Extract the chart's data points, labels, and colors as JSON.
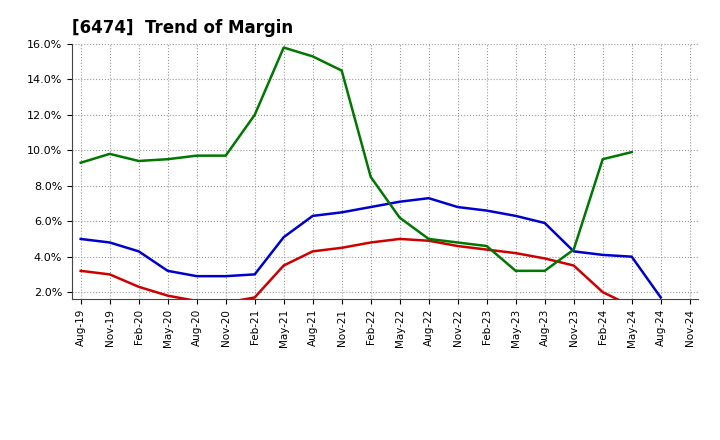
{
  "title": "[6474]  Trend of Margin",
  "x_labels": [
    "Aug-19",
    "Nov-19",
    "Feb-20",
    "May-20",
    "Aug-20",
    "Nov-20",
    "Feb-21",
    "May-21",
    "Aug-21",
    "Nov-21",
    "Feb-22",
    "May-22",
    "Aug-22",
    "Nov-22",
    "Feb-23",
    "May-23",
    "Aug-23",
    "Nov-23",
    "Feb-24",
    "May-24",
    "Aug-24",
    "Nov-24"
  ],
  "ordinary_income": [
    5.0,
    4.8,
    4.3,
    3.2,
    2.9,
    2.9,
    3.0,
    5.1,
    6.3,
    6.5,
    6.8,
    7.1,
    7.3,
    6.8,
    6.6,
    6.3,
    5.9,
    4.3,
    4.1,
    4.0,
    1.7,
    null
  ],
  "net_income": [
    3.2,
    3.0,
    2.3,
    1.8,
    1.5,
    1.4,
    1.7,
    3.5,
    4.3,
    4.5,
    4.8,
    5.0,
    4.9,
    4.6,
    4.4,
    4.2,
    3.9,
    3.5,
    2.0,
    1.2,
    1.4,
    null
  ],
  "operating_cashflow": [
    9.3,
    9.8,
    9.4,
    9.5,
    9.7,
    9.7,
    12.0,
    15.8,
    15.3,
    14.5,
    8.5,
    6.2,
    5.0,
    4.8,
    4.6,
    3.2,
    3.2,
    4.4,
    9.5,
    9.9,
    null,
    null
  ],
  "ylim": [
    1.6,
    16.0
  ],
  "yticks": [
    2.0,
    4.0,
    6.0,
    8.0,
    10.0,
    12.0,
    14.0,
    16.0
  ],
  "line_colors": {
    "ordinary_income": "#0000CC",
    "net_income": "#CC0000",
    "operating_cashflow": "#007700"
  },
  "background_color": "#FFFFFF",
  "plot_bg_color": "#FFFFFF",
  "grid_color": "#999999"
}
